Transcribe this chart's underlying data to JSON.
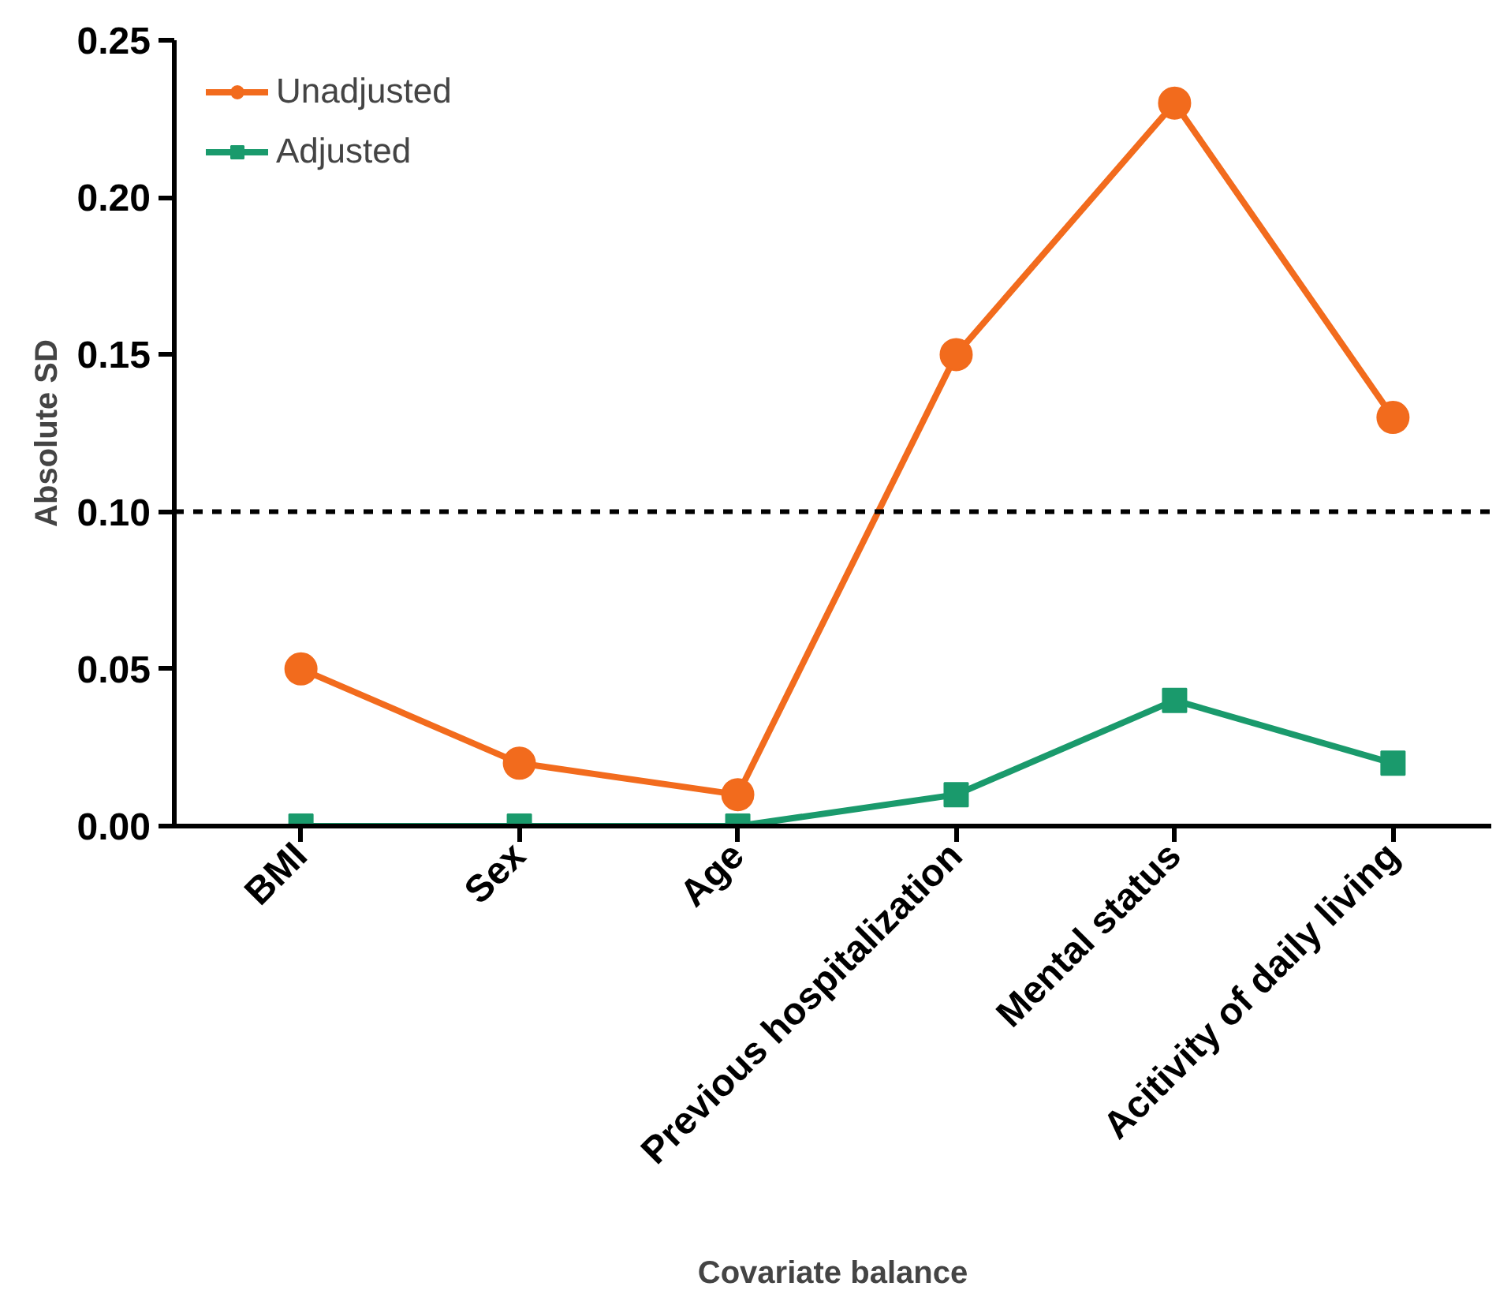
{
  "chart_data": {
    "type": "line",
    "xlabel": "Covariate balance",
    "ylabel": "Absolute SD",
    "categories": [
      "BMI",
      "Sex",
      "Age",
      "Previous hospitalization",
      "Mental status",
      "Acitivity of daily living"
    ],
    "series": [
      {
        "name": "Unadjusted",
        "color": "#f26b1d",
        "marker": "circle",
        "values": [
          0.05,
          0.02,
          0.01,
          0.15,
          0.23,
          0.13
        ]
      },
      {
        "name": "Adjusted",
        "color": "#1a9a6c",
        "marker": "square",
        "values": [
          0,
          0,
          0,
          0.01,
          0.04,
          0.02
        ]
      }
    ],
    "ylim": [
      0,
      0.25
    ],
    "yticks": [
      {
        "value": 0,
        "label": "0.00"
      },
      {
        "value": 0.05,
        "label": "0.05"
      },
      {
        "value": 0.1,
        "label": "0.10"
      },
      {
        "value": 0.15,
        "label": "0.15"
      },
      {
        "value": 0.2,
        "label": "0.20"
      },
      {
        "value": 0.25,
        "label": "0.25"
      }
    ],
    "ref_lines": [
      {
        "axis": "y",
        "value": 0.1,
        "label": null,
        "color": "#000000",
        "line_style": "dashed"
      }
    ],
    "grid": false,
    "legend": "top left",
    "line_style": "solid"
  }
}
